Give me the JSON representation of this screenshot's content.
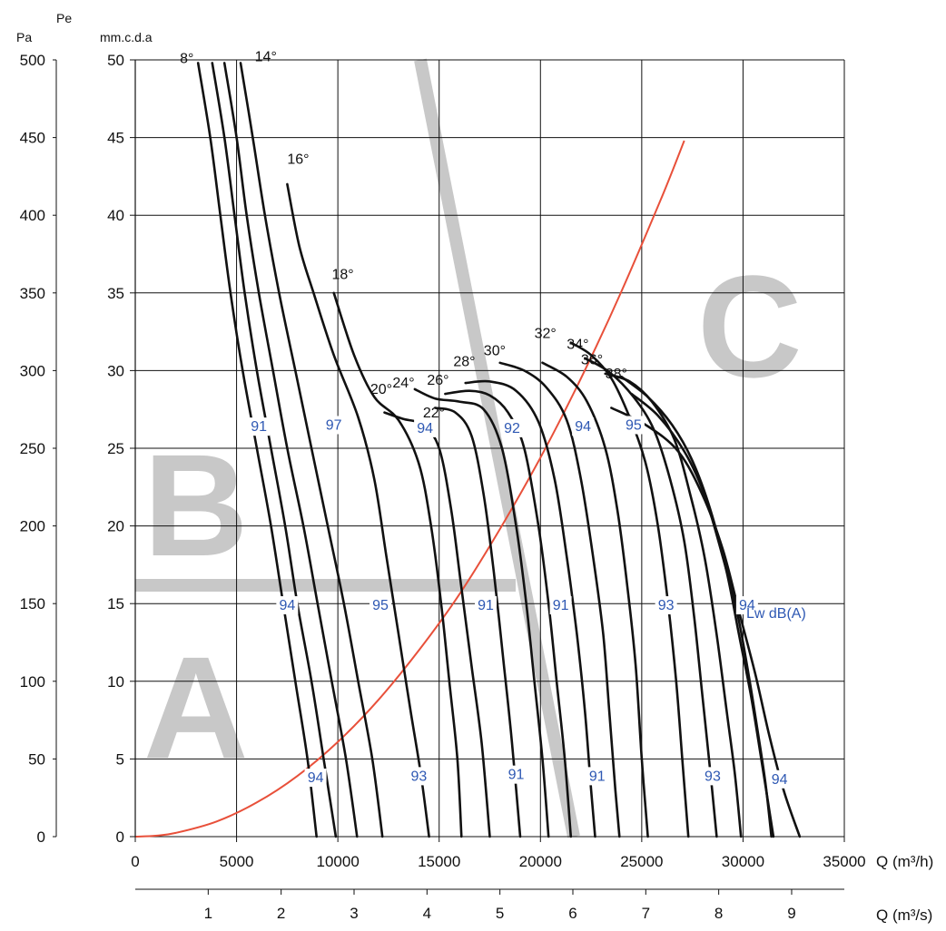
{
  "chart_data": {
    "type": "line",
    "axes": {
      "pa_label": "Pa",
      "pe_label": "Pe",
      "mm_label": "mm.c.d.a",
      "x_label_h": "Q (m³/h)",
      "x_label_s": "Q (m³/s)",
      "pa_ticks": [
        "0",
        "50",
        "100",
        "150",
        "200",
        "250",
        "300",
        "350",
        "400",
        "450",
        "500"
      ],
      "mm_ticks": [
        "0",
        "5",
        "10",
        "15",
        "20",
        "25",
        "30",
        "35",
        "40",
        "45",
        "50"
      ],
      "x_ticks_h": [
        "0",
        "5000",
        "10000",
        "15000",
        "20000",
        "25000",
        "30000",
        "35000"
      ],
      "x_ticks_s": [
        "1",
        "2",
        "3",
        "4",
        "5",
        "6",
        "7",
        "8",
        "9"
      ],
      "xlim": [
        0,
        35000
      ],
      "ylim": [
        0,
        50
      ],
      "grid": true
    },
    "series": [
      {
        "name": "8°",
        "points": [
          [
            3100,
            49.8
          ],
          [
            3700,
            45
          ],
          [
            4200,
            40
          ],
          [
            4700,
            35
          ],
          [
            5300,
            30
          ],
          [
            6000,
            25
          ],
          [
            6700,
            20
          ],
          [
            7300,
            15
          ],
          [
            7900,
            10
          ],
          [
            8500,
            5
          ],
          [
            8950,
            0
          ]
        ]
      },
      {
        "name": "",
        "points": [
          [
            3800,
            49.8
          ],
          [
            4400,
            45
          ],
          [
            4900,
            40
          ],
          [
            5400,
            35
          ],
          [
            6000,
            30
          ],
          [
            6700,
            25
          ],
          [
            7400,
            20
          ],
          [
            8000,
            15
          ],
          [
            8700,
            10
          ],
          [
            9300,
            5
          ],
          [
            9900,
            0
          ]
        ]
      },
      {
        "name": "",
        "points": [
          [
            4400,
            49.8
          ],
          [
            5000,
            45
          ],
          [
            5500,
            40
          ],
          [
            6100,
            35
          ],
          [
            6800,
            30
          ],
          [
            7500,
            25
          ],
          [
            8300,
            20
          ],
          [
            9000,
            15
          ],
          [
            9700,
            10
          ],
          [
            10400,
            5
          ],
          [
            10950,
            0
          ]
        ]
      },
      {
        "name": "14°",
        "points": [
          [
            5200,
            49.8
          ],
          [
            5800,
            45
          ],
          [
            6400,
            40
          ],
          [
            7100,
            35
          ],
          [
            7900,
            30
          ],
          [
            8700,
            25
          ],
          [
            9500,
            20
          ],
          [
            10300,
            15
          ],
          [
            11000,
            10
          ],
          [
            11700,
            5
          ],
          [
            12200,
            0
          ]
        ]
      },
      {
        "name": "16°",
        "points": [
          [
            7500,
            42
          ],
          [
            8100,
            38
          ],
          [
            8800,
            35
          ],
          [
            9800,
            31
          ],
          [
            11000,
            27
          ],
          [
            11800,
            23
          ],
          [
            12400,
            18
          ],
          [
            13000,
            13
          ],
          [
            13600,
            8
          ],
          [
            14100,
            4
          ],
          [
            14500,
            0
          ]
        ]
      },
      {
        "name": "18°",
        "points": [
          [
            9800,
            35
          ],
          [
            10800,
            31
          ],
          [
            11800,
            28.3
          ],
          [
            13000,
            26.8
          ],
          [
            14000,
            24
          ],
          [
            14600,
            20
          ],
          [
            15100,
            15
          ],
          [
            15500,
            10
          ],
          [
            15900,
            5
          ],
          [
            16100,
            0
          ]
        ]
      },
      {
        "name": "20°",
        "points": [
          [
            12300,
            27.3
          ],
          [
            13200,
            26.9
          ],
          [
            14200,
            26.5
          ],
          [
            15000,
            25
          ],
          [
            15600,
            21
          ],
          [
            16100,
            16
          ],
          [
            16600,
            11
          ],
          [
            17100,
            6
          ],
          [
            17500,
            0
          ]
        ]
      },
      {
        "name": "22°",
        "points": [
          [
            14800,
            27.6
          ],
          [
            15800,
            27.3
          ],
          [
            16600,
            25.8
          ],
          [
            17200,
            22
          ],
          [
            17700,
            17
          ],
          [
            18200,
            11
          ],
          [
            18600,
            6
          ],
          [
            19000,
            0
          ]
        ]
      },
      {
        "name": "24°",
        "points": [
          [
            13800,
            28.8
          ],
          [
            14800,
            28.2
          ],
          [
            16000,
            28
          ],
          [
            17200,
            27.5
          ],
          [
            18100,
            25
          ],
          [
            18800,
            20
          ],
          [
            19300,
            15
          ],
          [
            19700,
            10
          ],
          [
            20100,
            5
          ],
          [
            20400,
            0
          ]
        ]
      },
      {
        "name": "26°",
        "points": [
          [
            15300,
            28.5
          ],
          [
            16500,
            28.7
          ],
          [
            17500,
            28.4
          ],
          [
            18400,
            27.3
          ],
          [
            19200,
            25
          ],
          [
            19900,
            20
          ],
          [
            20400,
            15
          ],
          [
            20800,
            10
          ],
          [
            21200,
            5
          ],
          [
            21500,
            0
          ]
        ]
      },
      {
        "name": "28°",
        "points": [
          [
            16300,
            29.2
          ],
          [
            17500,
            29.3
          ],
          [
            18800,
            28.7
          ],
          [
            19900,
            26.7
          ],
          [
            20700,
            23
          ],
          [
            21300,
            18
          ],
          [
            21800,
            13
          ],
          [
            22200,
            8
          ],
          [
            22500,
            3
          ],
          [
            22700,
            0
          ]
        ]
      },
      {
        "name": "30°",
        "points": [
          [
            18000,
            30.5
          ],
          [
            19200,
            30
          ],
          [
            20300,
            28.9
          ],
          [
            21300,
            26.8
          ],
          [
            22000,
            23
          ],
          [
            22600,
            18
          ],
          [
            23100,
            13
          ],
          [
            23400,
            8
          ],
          [
            23700,
            3
          ],
          [
            23900,
            0
          ]
        ]
      },
      {
        "name": "",
        "points": [
          [
            20100,
            30.5
          ],
          [
            21300,
            29.6
          ],
          [
            22300,
            28
          ],
          [
            23200,
            25
          ],
          [
            23800,
            21
          ],
          [
            24300,
            16
          ],
          [
            24700,
            11
          ],
          [
            25000,
            5
          ],
          [
            25300,
            0
          ]
        ]
      },
      {
        "name": "32°",
        "points": [
          [
            21500,
            31.8
          ],
          [
            22500,
            31
          ],
          [
            23500,
            29.5
          ],
          [
            24400,
            27
          ],
          [
            25200,
            24
          ],
          [
            25800,
            20
          ],
          [
            26300,
            15
          ],
          [
            26700,
            10
          ],
          [
            27000,
            5
          ],
          [
            27300,
            0
          ]
        ]
      },
      {
        "name": "34°",
        "points": [
          [
            22200,
            30.8
          ],
          [
            23400,
            29.9
          ],
          [
            24600,
            28.3
          ],
          [
            25600,
            26.2
          ],
          [
            26400,
            23
          ],
          [
            27100,
            19
          ],
          [
            27600,
            14
          ],
          [
            28000,
            9
          ],
          [
            28400,
            4
          ],
          [
            28700,
            0
          ]
        ]
      },
      {
        "name": "36°",
        "points": [
          [
            23200,
            29.8
          ],
          [
            24400,
            29.3
          ],
          [
            25500,
            28
          ],
          [
            26600,
            25.6
          ],
          [
            27400,
            22
          ],
          [
            28100,
            18
          ],
          [
            28700,
            13
          ],
          [
            29200,
            8
          ],
          [
            29600,
            4
          ],
          [
            29900,
            0
          ]
        ]
      },
      {
        "name": "38°",
        "points": [
          [
            24000,
            29.6
          ],
          [
            25300,
            28.3
          ],
          [
            26500,
            26.5
          ],
          [
            27500,
            24.2
          ],
          [
            28400,
            21
          ],
          [
            29200,
            17
          ],
          [
            29800,
            13
          ],
          [
            30400,
            9
          ],
          [
            30900,
            5
          ],
          [
            31500,
            0
          ]
        ]
      },
      {
        "name": "",
        "points": [
          [
            24500,
            28.5
          ],
          [
            25800,
            27.1
          ],
          [
            27100,
            24.8
          ],
          [
            28100,
            22
          ],
          [
            29000,
            18
          ],
          [
            29700,
            14.5
          ],
          [
            30200,
            11
          ],
          [
            30700,
            7
          ],
          [
            31100,
            3.5
          ],
          [
            31400,
            0
          ]
        ]
      },
      {
        "name": "",
        "points": [
          [
            23500,
            27.6
          ],
          [
            25200,
            26.5
          ],
          [
            26800,
            24.8
          ],
          [
            28000,
            22
          ],
          [
            29000,
            18.5
          ],
          [
            29800,
            14.5
          ],
          [
            30600,
            10.5
          ],
          [
            31300,
            6.5
          ],
          [
            32000,
            3
          ],
          [
            32800,
            0
          ]
        ]
      }
    ],
    "system_curve": {
      "name": "",
      "x": [
        0,
        1000,
        2000,
        4000,
        6000,
        8000,
        10000,
        12000,
        14000,
        16000,
        18000,
        20000,
        22000,
        24000,
        26000,
        27100
      ],
      "y": [
        0,
        0.06,
        0.24,
        0.97,
        2.2,
        3.9,
        6.1,
        8.8,
        12.0,
        15.6,
        19.8,
        24.4,
        29.5,
        35.1,
        41.2,
        44.8
      ]
    },
    "angle_labels": [
      {
        "text": "8°",
        "x": 2200,
        "y": 49.8
      },
      {
        "text": "14°",
        "x": 5900,
        "y": 49.9
      },
      {
        "text": "16°",
        "x": 7500,
        "y": 43.3
      },
      {
        "text": "18°",
        "x": 9700,
        "y": 35.9
      },
      {
        "text": "20°",
        "x": 11600,
        "y": 28.5
      },
      {
        "text": "24°",
        "x": 12700,
        "y": 28.9
      },
      {
        "text": "26°",
        "x": 14400,
        "y": 29.1
      },
      {
        "text": "22°",
        "x": 14200,
        "y": 27.0
      },
      {
        "text": "28°",
        "x": 15700,
        "y": 30.3
      },
      {
        "text": "30°",
        "x": 17200,
        "y": 31.0
      },
      {
        "text": "32°",
        "x": 19700,
        "y": 32.1
      },
      {
        "text": "34°",
        "x": 21300,
        "y": 31.4
      },
      {
        "text": "36°",
        "x": 22000,
        "y": 30.4
      },
      {
        "text": "38°",
        "x": 23200,
        "y": 29.5
      }
    ],
    "noise_labels": [
      {
        "text": "91",
        "x": 6100,
        "y": 26.1
      },
      {
        "text": "97",
        "x": 9800,
        "y": 26.2
      },
      {
        "text": "94",
        "x": 14300,
        "y": 26.0
      },
      {
        "text": "92",
        "x": 18600,
        "y": 26.0
      },
      {
        "text": "94",
        "x": 22100,
        "y": 26.1
      },
      {
        "text": "95",
        "x": 24600,
        "y": 26.2
      },
      {
        "text": "94",
        "x": 7500,
        "y": 14.6
      },
      {
        "text": "95",
        "x": 12100,
        "y": 14.6
      },
      {
        "text": "91",
        "x": 17300,
        "y": 14.6
      },
      {
        "text": "91",
        "x": 21000,
        "y": 14.6
      },
      {
        "text": "93",
        "x": 26200,
        "y": 14.6
      },
      {
        "text": "94",
        "x": 30200,
        "y": 14.6
      },
      {
        "text": "94",
        "x": 8900,
        "y": 3.5
      },
      {
        "text": "93",
        "x": 14000,
        "y": 3.6
      },
      {
        "text": "91",
        "x": 18800,
        "y": 3.7
      },
      {
        "text": "91",
        "x": 22800,
        "y": 3.6
      },
      {
        "text": "93",
        "x": 28500,
        "y": 3.6
      },
      {
        "text": "94",
        "x": 31800,
        "y": 3.4
      }
    ],
    "lw_label": "Lw dB(A)",
    "zones": {
      "A": "A",
      "B": "B",
      "C": "C"
    },
    "colors": {
      "curves": "#111111",
      "system": "#e8503a",
      "zones": "#c8c8c8",
      "noise": "#2e58b3",
      "grid": "#111111"
    }
  }
}
